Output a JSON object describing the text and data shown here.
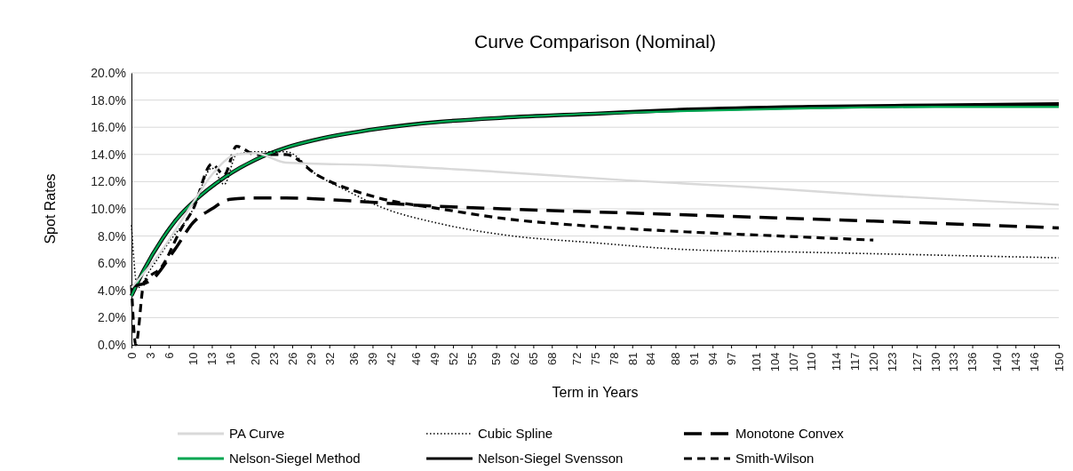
{
  "chart_data": {
    "type": "line",
    "title": "Curve Comparison (Nominal)",
    "xlabel": "Term in Years",
    "ylabel": "Spot Rates",
    "xlim": [
      0,
      150
    ],
    "xticks": [
      0,
      3,
      6,
      10,
      13,
      16,
      20,
      23,
      26,
      29,
      32,
      36,
      39,
      42,
      46,
      49,
      52,
      55,
      59,
      62,
      65,
      68,
      72,
      75,
      78,
      81,
      84,
      88,
      91,
      94,
      97,
      101,
      104,
      107,
      110,
      114,
      117,
      120,
      123,
      127,
      130,
      133,
      136,
      140,
      143,
      146,
      150
    ],
    "ylim": [
      0,
      20
    ],
    "yticks": [
      {
        "value": 0,
        "label": "0.0%"
      },
      {
        "value": 2,
        "label": "2.0%"
      },
      {
        "value": 4,
        "label": "4.0%"
      },
      {
        "value": 6,
        "label": "6.0%"
      },
      {
        "value": 8,
        "label": "8.0%"
      },
      {
        "value": 10,
        "label": "10.0%"
      },
      {
        "value": 12,
        "label": "12.0%"
      },
      {
        "value": 14,
        "label": "14.0%"
      },
      {
        "value": 16,
        "label": "16.0%"
      },
      {
        "value": 18,
        "label": "18.0%"
      },
      {
        "value": 20,
        "label": "20.0%"
      }
    ],
    "grid": "y",
    "legend": "bottom",
    "marker": "none",
    "series": [
      {
        "name": "PA Curve",
        "color": "#d9d9d9",
        "line_style": "solid",
        "x": [
          0,
          5,
          10,
          13,
          17,
          20,
          25,
          40,
          60,
          80,
          100,
          120,
          150
        ],
        "values": [
          4.2,
          7,
          10.5,
          12.5,
          14,
          14.1,
          13.4,
          13.2,
          12.7,
          12.1,
          11.6,
          11,
          10.3
        ]
      },
      {
        "name": "Cubic Spline",
        "color": "#000000",
        "line_style": "dotted",
        "x": [
          0,
          1,
          3,
          6,
          10,
          13,
          15,
          17,
          20,
          25,
          30,
          35,
          40,
          50,
          60,
          75,
          90,
          110,
          130,
          150
        ],
        "values": [
          8.8,
          4.2,
          5.5,
          7.5,
          10,
          13,
          11.8,
          14,
          14.2,
          14.2,
          12.5,
          11.3,
          10.2,
          8.9,
          8.1,
          7.5,
          7,
          6.8,
          6.6,
          6.4
        ]
      },
      {
        "name": "Monotone Convex",
        "color": "#000000",
        "line_style": "longdash",
        "x": [
          0,
          3,
          7,
          10,
          13,
          16,
          20,
          25,
          35,
          45,
          60,
          80,
          100,
          120,
          150
        ],
        "values": [
          4.3,
          4.7,
          7,
          9,
          10,
          10.7,
          10.8,
          10.8,
          10.6,
          10.3,
          10,
          9.7,
          9.4,
          9.1,
          8.6
        ]
      },
      {
        "name": "Nelson-Siegel Method",
        "color": "#00a651",
        "line_style": "solid",
        "x": [
          0,
          2,
          5,
          8,
          10,
          15,
          20,
          25,
          30,
          40,
          50,
          60,
          75,
          90,
          110,
          130,
          150
        ],
        "values": [
          3.6,
          5.5,
          7.8,
          9.6,
          10.5,
          12.3,
          13.6,
          14.5,
          15.1,
          15.9,
          16.4,
          16.7,
          17,
          17.2,
          17.4,
          17.5,
          17.5
        ]
      },
      {
        "name": "Nelson-Siegel Svensson",
        "color": "#000000",
        "line_style": "solid",
        "x": [
          0,
          2,
          5,
          8,
          10,
          15,
          20,
          25,
          30,
          40,
          50,
          60,
          75,
          90,
          110,
          130,
          150
        ],
        "values": [
          3.6,
          5.5,
          7.8,
          9.6,
          10.5,
          12.3,
          13.6,
          14.5,
          15.1,
          15.9,
          16.4,
          16.7,
          17,
          17.3,
          17.5,
          17.6,
          17.7
        ]
      },
      {
        "name": "Smith-Wilson",
        "color": "#000000",
        "line_style": "dashed",
        "x": [
          0,
          0.7,
          2,
          5,
          8,
          10,
          13,
          15,
          17,
          20,
          25,
          30,
          40,
          50,
          60,
          75,
          90,
          105,
          120
        ],
        "values": [
          4.4,
          0,
          4.5,
          5.8,
          8.5,
          10,
          13.3,
          12.5,
          14.6,
          14,
          14,
          12.5,
          10.8,
          10,
          9.3,
          8.7,
          8.3,
          8,
          7.7
        ]
      }
    ]
  }
}
